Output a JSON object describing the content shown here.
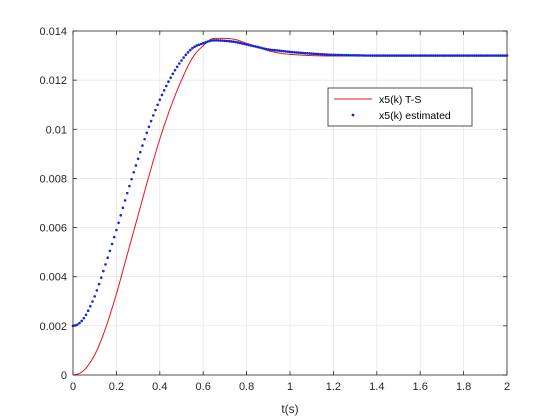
{
  "chart_data": {
    "type": "line",
    "title": "",
    "xlabel": "t(s)",
    "ylabel": "",
    "xlim": [
      0,
      2
    ],
    "ylim": [
      0,
      0.014
    ],
    "xticks": [
      0,
      0.2,
      0.4,
      0.6,
      0.8,
      1,
      1.2,
      1.4,
      1.6,
      1.8,
      2
    ],
    "xtick_labels": [
      "0",
      "0.2",
      "0.4",
      "0.6",
      "0.8",
      "1",
      "1.2",
      "1.4",
      "1.6",
      "1.8",
      "2"
    ],
    "yticks": [
      0,
      0.002,
      0.004,
      0.006,
      0.008,
      0.01,
      0.012,
      0.014
    ],
    "ytick_labels": [
      "0",
      "0.002",
      "0.004",
      "0.006",
      "0.008",
      "0.01",
      "0.012",
      "0.014"
    ],
    "grid": true,
    "legend_position": "upper-right",
    "series": [
      {
        "name": "x5(k) T-S",
        "style": "solid-line",
        "color": "#e8141c",
        "x": [
          0,
          0.02,
          0.04,
          0.06,
          0.08,
          0.1,
          0.12,
          0.15,
          0.2,
          0.25,
          0.3,
          0.35,
          0.4,
          0.45,
          0.5,
          0.55,
          0.6,
          0.65,
          0.7,
          0.75,
          0.8,
          0.85,
          0.9,
          0.95,
          1.0,
          1.1,
          1.2,
          1.3,
          1.4,
          1.5,
          1.6,
          1.8,
          2.0
        ],
        "y": [
          0,
          3e-05,
          0.00012,
          0.00028,
          0.00052,
          0.00082,
          0.0012,
          0.0019,
          0.0033,
          0.0049,
          0.0065,
          0.0081,
          0.0096,
          0.0109,
          0.012,
          0.0129,
          0.0134,
          0.0137,
          0.0137,
          0.01365,
          0.0135,
          0.01335,
          0.0132,
          0.0131,
          0.01305,
          0.013,
          0.01298,
          0.01299,
          0.013,
          0.013,
          0.013,
          0.013,
          0.013
        ]
      },
      {
        "name": "x5(k) estimated",
        "style": "dots",
        "color": "#1428d6",
        "x": [
          0,
          0.02,
          0.04,
          0.06,
          0.08,
          0.1,
          0.12,
          0.15,
          0.2,
          0.25,
          0.3,
          0.35,
          0.4,
          0.45,
          0.5,
          0.55,
          0.6,
          0.65,
          0.7,
          0.75,
          0.8,
          0.85,
          0.9,
          0.95,
          1.0,
          1.1,
          1.2,
          1.3,
          1.4,
          1.5,
          1.6,
          1.8,
          2.0
        ],
        "y": [
          0.002,
          0.00205,
          0.0022,
          0.00245,
          0.0028,
          0.0032,
          0.0037,
          0.0045,
          0.0059,
          0.0074,
          0.0088,
          0.0101,
          0.0112,
          0.0121,
          0.0128,
          0.0133,
          0.0135,
          0.01362,
          0.0136,
          0.01355,
          0.01345,
          0.01335,
          0.01325,
          0.0132,
          0.01315,
          0.01308,
          0.01303,
          0.01301,
          0.013,
          0.013,
          0.013,
          0.013,
          0.013
        ]
      }
    ]
  }
}
